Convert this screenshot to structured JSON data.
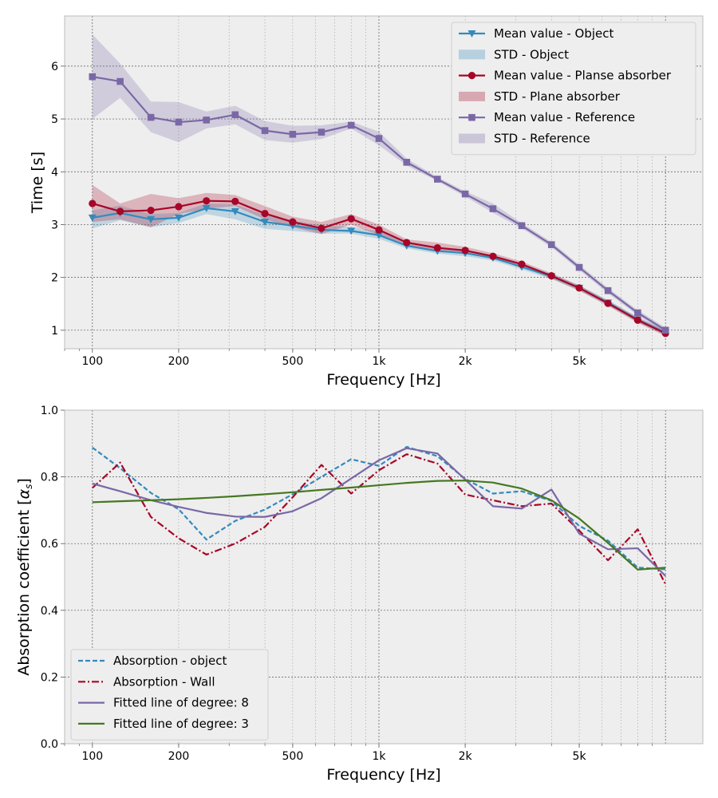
{
  "chart_data": [
    {
      "type": "line",
      "xlabel": "Frequency [Hz]",
      "ylabel": "Time [s]",
      "xscale": "log",
      "xlim": [
        80,
        13500
      ],
      "ylim": [
        0.65,
        6.95
      ],
      "xticks": [
        100,
        200,
        500,
        1000,
        2000,
        5000
      ],
      "xtick_labels": [
        "100",
        "200",
        "500",
        "1k",
        "2k",
        "5k"
      ],
      "yticks": [
        1,
        2,
        3,
        4,
        5,
        6
      ],
      "ytick_labels": [
        "1",
        "2",
        "3",
        "4",
        "5",
        "6"
      ],
      "grid": true,
      "legend_position": "upper right",
      "x": [
        100,
        125,
        160,
        200,
        250,
        315,
        400,
        500,
        630,
        800,
        1000,
        1250,
        1600,
        2000,
        2500,
        3150,
        4000,
        5000,
        6300,
        8000,
        10000
      ],
      "series": [
        {
          "name": "Mean value - Object",
          "color": "#348abd",
          "marker": "triangle-down",
          "values": [
            3.13,
            3.22,
            3.1,
            3.13,
            3.31,
            3.25,
            3.05,
            2.98,
            2.9,
            2.88,
            2.8,
            2.6,
            2.5,
            2.46,
            2.37,
            2.2,
            2.02,
            1.8,
            1.52,
            1.2,
            0.95
          ],
          "std_name": "STD - Object",
          "std_lower": [
            2.93,
            3.08,
            2.95,
            3.03,
            3.2,
            3.1,
            2.92,
            2.88,
            2.83,
            2.83,
            2.73,
            2.55,
            2.45,
            2.4,
            2.32,
            2.15,
            1.97,
            1.75,
            1.47,
            1.15,
            0.9
          ],
          "std_upper": [
            3.27,
            3.36,
            3.2,
            3.22,
            3.4,
            3.38,
            3.18,
            3.08,
            2.98,
            2.96,
            2.87,
            2.66,
            2.56,
            2.52,
            2.42,
            2.25,
            2.07,
            1.85,
            1.57,
            1.25,
            1.0
          ]
        },
        {
          "name": "Mean value - Planse absorber",
          "color": "#a60628",
          "marker": "circle",
          "values": [
            3.4,
            3.25,
            3.27,
            3.34,
            3.45,
            3.44,
            3.21,
            3.05,
            2.93,
            3.11,
            2.9,
            2.66,
            2.56,
            2.51,
            2.4,
            2.25,
            2.03,
            1.8,
            1.51,
            1.19,
            0.94
          ],
          "std_name": "STD - Plane absorber",
          "std_lower": [
            3.05,
            3.1,
            2.95,
            3.2,
            3.3,
            3.35,
            3.1,
            2.95,
            2.82,
            3.0,
            2.8,
            2.6,
            2.5,
            2.45,
            2.35,
            2.2,
            1.98,
            1.75,
            1.46,
            1.14,
            0.89
          ],
          "std_upper": [
            3.75,
            3.4,
            3.58,
            3.5,
            3.6,
            3.56,
            3.35,
            3.15,
            3.05,
            3.2,
            3.0,
            2.72,
            2.66,
            2.58,
            2.46,
            2.3,
            2.08,
            1.85,
            1.56,
            1.24,
            0.99
          ]
        },
        {
          "name": "Mean value - Reference",
          "color": "#7a68a6",
          "marker": "square",
          "values": [
            5.8,
            5.71,
            5.03,
            4.94,
            4.98,
            5.08,
            4.78,
            4.71,
            4.75,
            4.88,
            4.63,
            4.18,
            3.86,
            3.58,
            3.3,
            2.98,
            2.62,
            2.19,
            1.75,
            1.33,
            1.0
          ],
          "std_name": "STD - Reference",
          "std_lower": [
            5.0,
            5.4,
            4.75,
            4.56,
            4.82,
            4.9,
            4.6,
            4.55,
            4.62,
            4.82,
            4.5,
            4.12,
            3.82,
            3.53,
            3.22,
            2.93,
            2.57,
            2.14,
            1.7,
            1.28,
            0.95
          ],
          "std_upper": [
            6.6,
            6.05,
            5.33,
            5.32,
            5.14,
            5.25,
            4.96,
            4.87,
            4.88,
            4.95,
            4.76,
            4.25,
            3.9,
            3.63,
            3.4,
            3.03,
            2.67,
            2.24,
            1.8,
            1.38,
            1.05
          ]
        }
      ]
    },
    {
      "type": "line",
      "xlabel": "Frequency [Hz]",
      "ylabel": "Absorption coefficient [",
      "ylabel_symbol": "α",
      "ylabel_subscript": "s",
      "ylabel_close": "]",
      "xscale": "log",
      "xlim": [
        80,
        13500
      ],
      "ylim": [
        0.0,
        1.0
      ],
      "xticks": [
        100,
        200,
        500,
        1000,
        2000,
        5000
      ],
      "xtick_labels": [
        "100",
        "200",
        "500",
        "1k",
        "2k",
        "5k"
      ],
      "yticks": [
        0.0,
        0.2,
        0.4,
        0.6,
        0.8,
        1.0
      ],
      "ytick_labels": [
        "0.0",
        "0.2",
        "0.4",
        "0.6",
        "0.8",
        "1.0"
      ],
      "grid": true,
      "legend_position": "lower left",
      "x": [
        100,
        125,
        160,
        200,
        250,
        315,
        400,
        500,
        630,
        800,
        1000,
        1250,
        1600,
        2000,
        2500,
        3150,
        4000,
        5000,
        6300,
        8000,
        10000
      ],
      "series": [
        {
          "name": "Absorption - object",
          "color": "#348abd",
          "dash": "dashed",
          "values": [
            0.888,
            0.826,
            0.752,
            0.703,
            0.612,
            0.668,
            0.702,
            0.748,
            0.8,
            0.853,
            0.833,
            0.89,
            0.862,
            0.794,
            0.75,
            0.757,
            0.728,
            0.653,
            0.609,
            0.528,
            0.523
          ]
        },
        {
          "name": "Absorption - Wall",
          "color": "#a60628",
          "dash": "dashdot",
          "values": [
            0.767,
            0.843,
            0.68,
            0.616,
            0.567,
            0.6,
            0.65,
            0.739,
            0.836,
            0.75,
            0.82,
            0.868,
            0.84,
            0.747,
            0.73,
            0.712,
            0.72,
            0.639,
            0.55,
            0.643,
            0.478
          ]
        },
        {
          "name": "Fitted line of degree: 8",
          "color": "#7a68a6",
          "dash": "solid",
          "values": [
            0.78,
            0.757,
            0.73,
            0.71,
            0.692,
            0.681,
            0.68,
            0.697,
            0.736,
            0.795,
            0.85,
            0.886,
            0.87,
            0.792,
            0.712,
            0.705,
            0.762,
            0.63,
            0.583,
            0.586,
            0.503
          ]
        },
        {
          "name": "Fitted line of degree: 3",
          "color": "#467821",
          "dash": "solid",
          "values": [
            0.724,
            0.727,
            0.73,
            0.733,
            0.737,
            0.742,
            0.748,
            0.754,
            0.761,
            0.768,
            0.775,
            0.782,
            0.788,
            0.789,
            0.783,
            0.765,
            0.73,
            0.675,
            0.602,
            0.522,
            0.528
          ]
        }
      ]
    }
  ]
}
